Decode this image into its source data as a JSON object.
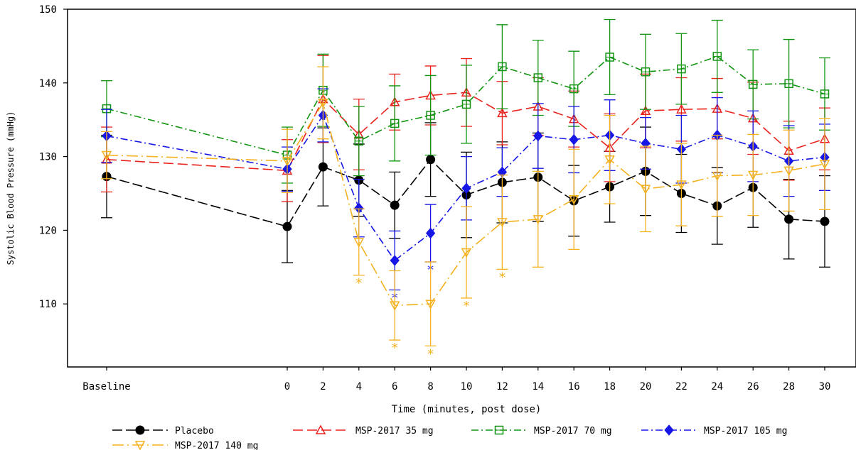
{
  "chart_data": {
    "type": "line",
    "xlabel": "Time (minutes, post dose)",
    "ylabel": "Systolic Blood Pressure (mmHg)",
    "ylim": [
      103,
      151
    ],
    "yticks": [
      110,
      120,
      130,
      140,
      150
    ],
    "categories": [
      "Baseline",
      "0",
      "2",
      "4",
      "6",
      "8",
      "10",
      "12",
      "14",
      "16",
      "18",
      "20",
      "22",
      "24",
      "26",
      "28",
      "30"
    ],
    "x": [
      -8,
      0,
      2,
      4,
      6,
      8,
      10,
      12,
      14,
      16,
      18,
      20,
      22,
      24,
      26,
      28,
      30
    ],
    "grid": false,
    "legend_position": "bottom",
    "significance_marker": "*",
    "series": [
      {
        "name": "Placebo",
        "color": "#000000",
        "marker": "circle-filled",
        "dash": "long-dash",
        "values": [
          127.3,
          120.5,
          128.6,
          126.8,
          123.4,
          129.6,
          124.8,
          126.5,
          127.2,
          124.0,
          125.9,
          128.0,
          125.0,
          123.3,
          125.8,
          121.5,
          121.2
        ],
        "err": [
          5.6,
          4.9,
          5.3,
          4.9,
          4.5,
          5.0,
          5.8,
          5.5,
          6.0,
          4.8,
          4.8,
          6.0,
          5.3,
          5.2,
          5.4,
          5.4,
          6.2
        ],
        "sig": []
      },
      {
        "name": "MSP-2017 35 mg",
        "color": "#e8221d",
        "marker": "triangle-open",
        "dash": "dash",
        "values": [
          129.6,
          128.1,
          137.8,
          133.0,
          137.4,
          138.3,
          138.7,
          135.9,
          136.8,
          135.1,
          131.2,
          136.2,
          136.4,
          136.5,
          135.2,
          130.8,
          132.4
        ],
        "err": [
          4.4,
          4.2,
          5.9,
          4.8,
          3.8,
          4.0,
          4.6,
          4.3,
          3.9,
          3.8,
          4.6,
          5.0,
          4.3,
          4.1,
          4.9,
          4.0,
          4.2
        ],
        "sig": []
      },
      {
        "name": "MSP-2017 70 mg",
        "color": "#119411",
        "marker": "square-open",
        "dash": "dash-dot",
        "values": [
          136.5,
          130.2,
          139.0,
          132.1,
          134.5,
          135.6,
          137.1,
          142.2,
          140.7,
          139.2,
          143.5,
          141.5,
          141.9,
          143.6,
          139.8,
          139.9,
          138.5
        ],
        "err": [
          3.8,
          3.8,
          4.9,
          4.7,
          5.1,
          5.4,
          5.3,
          5.7,
          5.1,
          5.1,
          5.1,
          5.1,
          4.8,
          4.9,
          4.7,
          6.0,
          4.9
        ],
        "sig": []
      },
      {
        "name": "MSP-2017 105 mg",
        "color": "#1616e6",
        "marker": "diamond-filled",
        "dash": "dash-dot",
        "values": [
          132.8,
          128.3,
          135.6,
          123.0,
          115.9,
          119.6,
          125.7,
          127.9,
          132.8,
          132.3,
          132.9,
          131.8,
          131.0,
          132.9,
          131.4,
          129.4,
          129.9
        ],
        "err": [
          3.6,
          3.0,
          3.6,
          3.9,
          4.0,
          3.9,
          4.3,
          3.3,
          4.4,
          4.5,
          4.8,
          3.5,
          4.6,
          5.1,
          4.8,
          4.8,
          4.5
        ],
        "sig": [
          6,
          8
        ]
      },
      {
        "name": "MSP-2017 140 mg",
        "color": "#f5b21f",
        "marker": "triangle-down-open",
        "dash": "long-dash-dot",
        "values": [
          130.2,
          129.4,
          137.3,
          118.4,
          109.8,
          110.0,
          117.0,
          121.1,
          121.5,
          124.2,
          129.6,
          125.6,
          126.2,
          127.4,
          127.5,
          128.1,
          129.0
        ],
        "err": [
          3.2,
          4.3,
          4.9,
          4.5,
          4.7,
          5.7,
          6.2,
          6.4,
          6.5,
          6.8,
          6.0,
          5.8,
          5.6,
          5.5,
          5.5,
          5.5,
          6.2
        ],
        "sig": [
          4,
          6,
          8,
          10,
          12
        ]
      }
    ]
  }
}
